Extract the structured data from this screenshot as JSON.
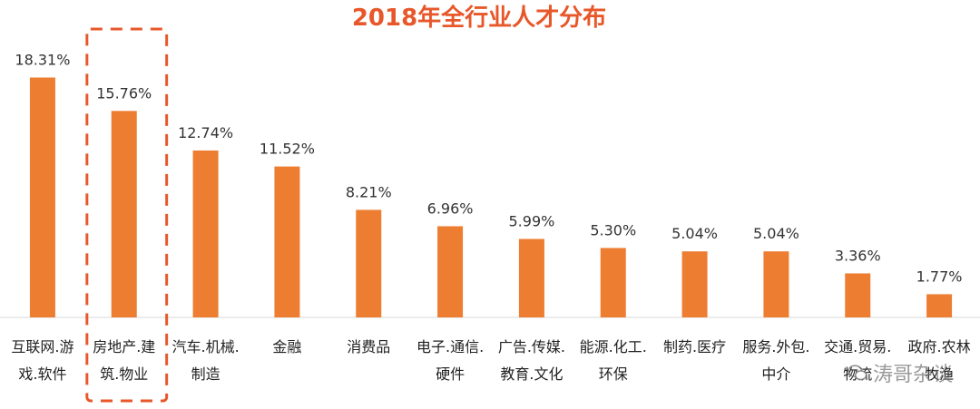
{
  "chart_data": {
    "type": "bar",
    "title": "2018年全行业人才分布",
    "categories": [
      [
        "互联网.游",
        "戏.软件"
      ],
      [
        "房地产.建",
        "筑.物业"
      ],
      [
        "汽车.机械.",
        "制造"
      ],
      [
        "金融"
      ],
      [
        "消费品"
      ],
      [
        "电子.通信.",
        "硬件"
      ],
      [
        "广告.传媒.",
        "教育.文化"
      ],
      [
        "能源.化工.",
        "环保"
      ],
      [
        "制药.医疗"
      ],
      [
        "服务.外包.",
        "中介"
      ],
      [
        "交通.贸易.",
        "物流"
      ],
      [
        "政府.农林",
        "牧渔"
      ]
    ],
    "values": [
      18.31,
      15.76,
      12.74,
      11.52,
      8.21,
      6.96,
      5.99,
      5.3,
      5.04,
      5.04,
      3.36,
      1.77
    ],
    "value_labels": [
      "18.31%",
      "15.76%",
      "12.74%",
      "11.52%",
      "8.21%",
      "6.96%",
      "5.99%",
      "5.30%",
      "5.04%",
      "5.04%",
      "3.36%",
      "1.77%"
    ],
    "highlighted_index": 1,
    "xlabel": "",
    "ylabel": "",
    "ylim": [
      0,
      20
    ],
    "grid": false,
    "legend": "none"
  },
  "colors": {
    "bar": "#ED7D31",
    "title": "#E8572A",
    "highlight_box": "#E8572A",
    "axis": "#D9D9D9"
  },
  "watermark": {
    "text": "涛哥杂谈",
    "icon": "wechat-icon"
  }
}
